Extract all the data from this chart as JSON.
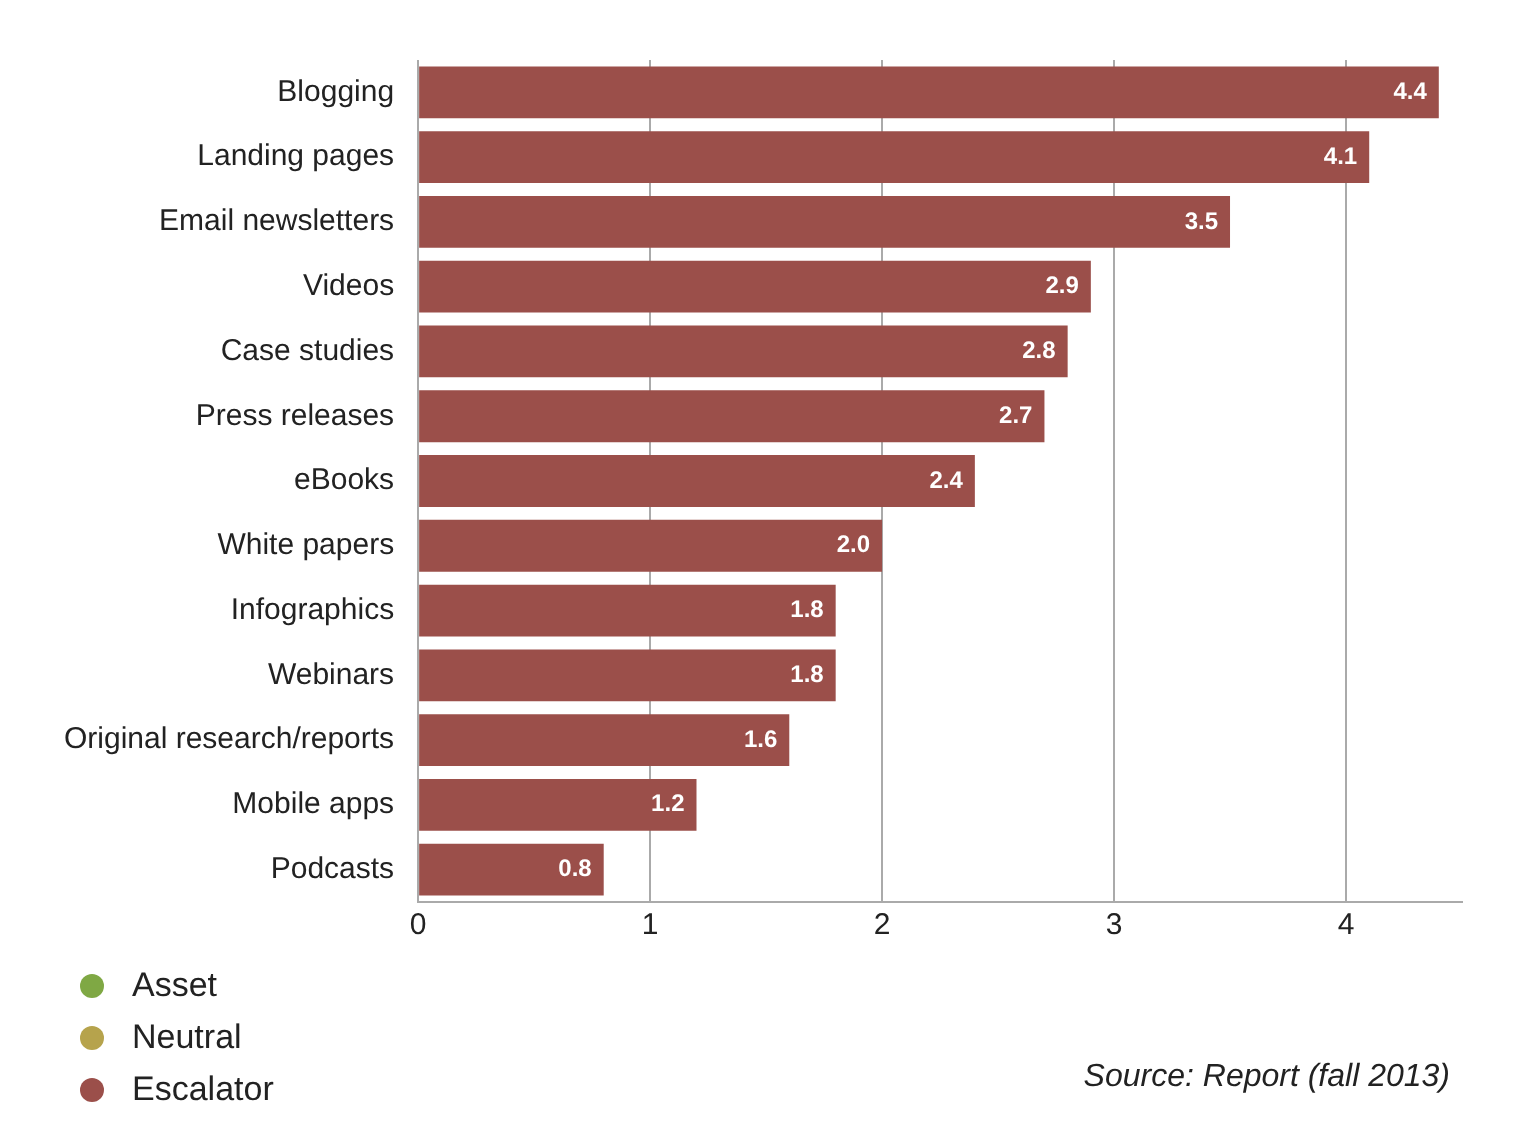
{
  "chart_data": {
    "type": "bar",
    "orientation": "horizontal",
    "categories": [
      "Blogging",
      "Landing pages",
      "Email newsletters",
      "Videos",
      "Case studies",
      "Press releases",
      "eBooks",
      "White papers",
      "Infographics",
      "Webinars",
      "Original research/reports",
      "Mobile apps",
      "Podcasts"
    ],
    "series": [
      {
        "name": "Asset",
        "color": "#7fa844",
        "values": [
          null,
          null,
          null,
          null,
          null,
          null,
          null,
          null,
          null,
          null,
          null,
          null,
          null
        ]
      },
      {
        "name": "Neutral",
        "color": "#b6a34c",
        "values": [
          null,
          null,
          null,
          null,
          null,
          null,
          null,
          null,
          null,
          null,
          null,
          null,
          null
        ]
      },
      {
        "name": "Escalator",
        "color": "#9b4f4a",
        "values": [
          4.4,
          4.1,
          3.5,
          2.9,
          2.8,
          2.7,
          2.4,
          2.0,
          1.8,
          1.8,
          1.6,
          1.2,
          0.8
        ],
        "value_labels": [
          "4.4",
          "4.1",
          "3.5",
          "2.9",
          "2.8",
          "2.7",
          "2.4",
          "2.0",
          "1.8",
          "1.8",
          "1.6",
          "1.2",
          "0.8"
        ]
      }
    ],
    "xlim": [
      0,
      4.5
    ],
    "xticks": [
      0,
      1,
      2,
      3,
      4
    ],
    "grid": "x",
    "legend": "bottom left",
    "annotations": [
      "Source: Report (fall 2013)"
    ]
  }
}
